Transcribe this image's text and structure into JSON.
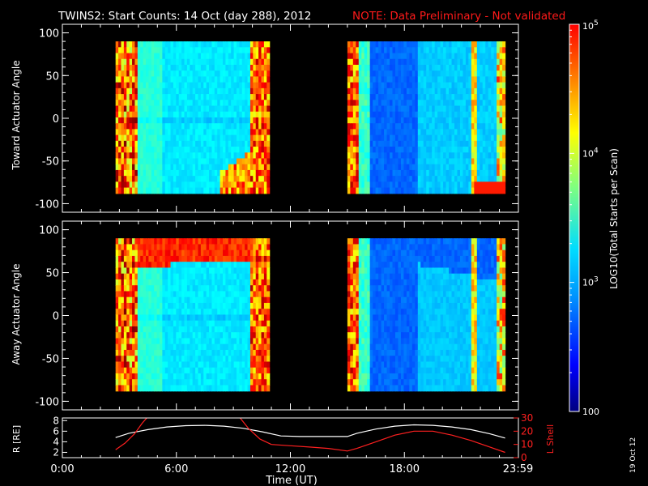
{
  "header": {
    "title": "TWINS2: Start Counts: 14 Oct (day 288), 2012",
    "note": "NOTE: Data Preliminary - Not validated",
    "note_color": "#ff1a1a"
  },
  "footer": {
    "stamp": "19 Oct 12"
  },
  "colorbar": {
    "label": "LOG10(Total Starts per Scan)",
    "ticks": [
      "100",
      "10^3",
      "10^4",
      "10^5"
    ],
    "range_log10": [
      2,
      5
    ]
  },
  "chart_data": [
    {
      "type": "heatmap",
      "name": "top-panel",
      "xlabel": "",
      "ylabel": "Toward Actuator Angle",
      "xlim": [
        0,
        24
      ],
      "ylim": [
        -110,
        110
      ],
      "y_ticks": [
        -100,
        -50,
        0,
        50,
        100
      ],
      "data_extent_y": [
        -88,
        90
      ],
      "color_scale": "log10 counts",
      "blocks": [
        {
          "x_start": 2.8,
          "x_end": 10.9,
          "pattern": "left-block"
        },
        {
          "x_start": 15.0,
          "x_end": 23.3,
          "pattern": "right-block"
        }
      ]
    },
    {
      "type": "heatmap",
      "name": "middle-panel",
      "xlabel": "",
      "ylabel": "Away Actuator Angle",
      "xlim": [
        0,
        24
      ],
      "ylim": [
        -110,
        110
      ],
      "y_ticks": [
        -100,
        -50,
        0,
        50,
        100
      ],
      "data_extent_y": [
        -88,
        90
      ],
      "color_scale": "log10 counts",
      "blocks": [
        {
          "x_start": 2.8,
          "x_end": 10.9,
          "pattern": "left-block-away"
        },
        {
          "x_start": 15.0,
          "x_end": 23.3,
          "pattern": "right-block-away"
        }
      ]
    },
    {
      "type": "line",
      "name": "orbit-panel",
      "xlabel": "Time (UT)",
      "ylabel": "R [RE]",
      "ylabel2": "L Shell",
      "x_ticks": [
        "0:00",
        "6:00",
        "12:00",
        "18:00",
        "23:59"
      ],
      "x_tick_values": [
        0,
        6,
        12,
        18,
        23.98
      ],
      "ylim": [
        1,
        8.5
      ],
      "y_ticks": [
        2,
        4,
        6,
        8
      ],
      "ylim2": [
        0,
        30
      ],
      "y2_ticks": [
        0,
        10,
        20,
        30
      ],
      "series": [
        {
          "name": "R",
          "axis": "left",
          "color": "#ffffff",
          "x": [
            2.8,
            3.5,
            4.5,
            5.5,
            6.5,
            7.5,
            8.5,
            9.5,
            10.5,
            11.5,
            12.5,
            13.5,
            14.5,
            15.0,
            15.5,
            16.5,
            17.5,
            18.5,
            19.5,
            20.5,
            21.5,
            22.5,
            23.3
          ],
          "values": [
            4.8,
            5.6,
            6.3,
            6.8,
            7.05,
            7.1,
            6.95,
            6.55,
            5.9,
            5.1,
            5.0,
            5.0,
            5.0,
            5.0,
            5.6,
            6.4,
            6.95,
            7.2,
            7.1,
            6.8,
            6.3,
            5.5,
            4.7
          ]
        },
        {
          "name": "L Shell",
          "axis": "right",
          "color": "#ff2020",
          "segments": [
            {
              "x": [
                2.8,
                3.3,
                3.8,
                4.2,
                4.5
              ],
              "values": [
                6,
                11,
                18,
                26,
                31
              ]
            },
            {
              "x": [
                9.3,
                9.8,
                10.4,
                11.0,
                12.0,
                13.0,
                14.0,
                15.0,
                15.5,
                16.5,
                17.5,
                18.5,
                19.5,
                20.5,
                21.5,
                22.5,
                23.3
              ],
              "values": [
                31,
                22,
                14,
                10,
                9,
                8,
                7,
                5,
                7,
                12,
                17,
                20,
                20,
                17,
                13,
                8,
                4
              ]
            }
          ]
        }
      ]
    }
  ]
}
